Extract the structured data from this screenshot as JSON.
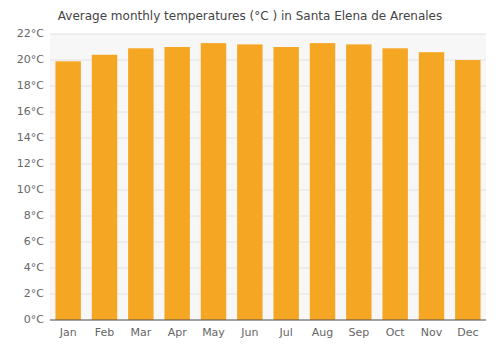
{
  "chart_data": {
    "type": "bar",
    "title": "Average monthly temperatures (°C ) in Santa Elena de Arenales",
    "categories": [
      "Jan",
      "Feb",
      "Mar",
      "Apr",
      "May",
      "Jun",
      "Jul",
      "Aug",
      "Sep",
      "Oct",
      "Nov",
      "Dec"
    ],
    "values": [
      19.9,
      20.4,
      20.9,
      21.0,
      21.3,
      21.2,
      21.0,
      21.3,
      21.2,
      20.9,
      20.6,
      20.0
    ],
    "color": "#F5A623",
    "ylim": [
      0,
      22
    ],
    "yticks": [
      {
        "value": 0,
        "label": "0°C"
      },
      {
        "value": 2,
        "label": "2°C"
      },
      {
        "value": 4,
        "label": "4°C"
      },
      {
        "value": 6,
        "label": "6°C"
      },
      {
        "value": 8,
        "label": "8°C"
      },
      {
        "value": 10,
        "label": "10°C"
      },
      {
        "value": 12,
        "label": "12°C"
      },
      {
        "value": 14,
        "label": "14°C"
      },
      {
        "value": 16,
        "label": "16°C"
      },
      {
        "value": 18,
        "label": "18°C"
      },
      {
        "value": 20,
        "label": "20°C"
      },
      {
        "value": 22,
        "label": "22°C"
      }
    ],
    "grid": true
  }
}
